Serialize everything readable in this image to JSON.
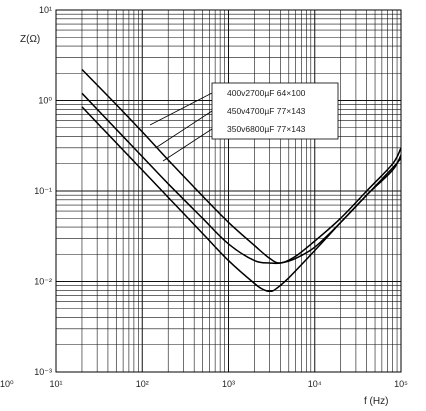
{
  "chart_data": {
    "type": "line",
    "x_scale": "log",
    "y_scale": "log",
    "xlim": [
      10,
      100000
    ],
    "ylim": [
      0.001,
      10
    ],
    "grid": true,
    "xlabel": "f (Hz)",
    "ylabel": "Z(Ω)",
    "x_ticks": [
      {
        "value": 1,
        "label": "10⁰"
      },
      {
        "value": 10,
        "label": "10¹"
      },
      {
        "value": 100,
        "label": "10²"
      },
      {
        "value": 1000,
        "label": "10³"
      },
      {
        "value": 10000,
        "label": "10⁴"
      },
      {
        "value": 100000,
        "label": "10⁵"
      }
    ],
    "y_ticks": [
      {
        "value": 10,
        "label": "10¹"
      },
      {
        "value": 1,
        "label": "10⁰"
      },
      {
        "value": 0.1,
        "label": "10⁻¹"
      },
      {
        "value": 0.01,
        "label": "10⁻²"
      },
      {
        "value": 0.001,
        "label": "10⁻³"
      }
    ],
    "series": [
      {
        "name": "400v2700µF 64×100",
        "x": [
          20,
          50,
          100,
          200,
          500,
          1000,
          2000,
          3000,
          4000,
          6000,
          10000,
          20000,
          40000,
          80000,
          100000
        ],
        "y": [
          2.2,
          0.9,
          0.45,
          0.22,
          0.088,
          0.045,
          0.025,
          0.018,
          0.016,
          0.019,
          0.028,
          0.05,
          0.1,
          0.2,
          0.3
        ]
      },
      {
        "name": "450v4700µF 77×143",
        "x": [
          20,
          50,
          100,
          200,
          500,
          1000,
          2000,
          3000,
          4000,
          6000,
          10000,
          20000,
          40000,
          80000,
          100000
        ],
        "y": [
          1.2,
          0.48,
          0.24,
          0.12,
          0.05,
          0.026,
          0.017,
          0.016,
          0.016,
          0.018,
          0.024,
          0.045,
          0.09,
          0.17,
          0.25
        ]
      },
      {
        "name": "350v6800µF 77×143",
        "x": [
          20,
          50,
          100,
          200,
          500,
          1000,
          2000,
          2500,
          3000,
          3500,
          5000,
          10000,
          20000,
          40000,
          80000,
          100000
        ],
        "y": [
          0.85,
          0.34,
          0.17,
          0.085,
          0.034,
          0.017,
          0.0095,
          0.0082,
          0.0078,
          0.0082,
          0.011,
          0.022,
          0.045,
          0.09,
          0.18,
          0.23
        ]
      }
    ],
    "legend_position": "top-right"
  }
}
